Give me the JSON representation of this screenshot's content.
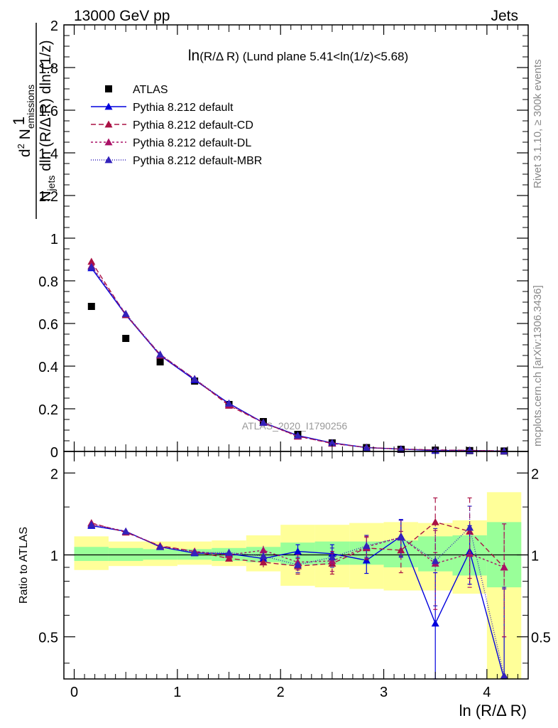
{
  "header": {
    "left": "13000 GeV pp",
    "right": "Jets"
  },
  "side_labels": {
    "rivet": "Rivet 3.1.10, ≥ 300k events",
    "mcplots": "mcplots.cern.ch [arXiv:1306.3436]"
  },
  "watermark": "ATLAS_2020_I1790256",
  "chart_data": [
    {
      "type": "scatter",
      "panel": "main",
      "title": "ln(R/Δ R) (Lund plane 5.41<ln(1/z)<5.68)",
      "title_parts": {
        "main": "ln",
        "paren": "(R/Δ R)",
        "rest": " (Lund plane 5.41<ln(1/z)<5.68)"
      },
      "ylabel_parts": {
        "one": "1",
        "den_N": "N",
        "den_jets": "jets",
        "den_rest": " dln (R/Δ R) dln (1/z)",
        "num_d": "d",
        "num_sup": "2",
        "num_N": " N",
        "num_sub": "emissions"
      },
      "xlim": [
        -0.1,
        4.4
      ],
      "ylim": [
        0,
        2
      ],
      "yticks": [
        0,
        0.2,
        0.4,
        0.6,
        0.8,
        1,
        1.2,
        1.4,
        1.6,
        1.8,
        2
      ],
      "ytick_labels": [
        "0",
        "0.2",
        "0.4",
        "0.6",
        "0.8",
        "1",
        "1.2",
        "1.4",
        "1.6",
        "1.8",
        "2"
      ],
      "x": [
        0.167,
        0.5,
        0.833,
        1.167,
        1.5,
        1.833,
        2.167,
        2.5,
        2.833,
        3.167,
        3.5,
        3.833,
        4.167
      ],
      "series": [
        {
          "name": "ATLAS",
          "color": "#000000",
          "marker": "square",
          "values": [
            0.68,
            0.53,
            0.42,
            0.33,
            0.22,
            0.14,
            0.08,
            0.04,
            0.018,
            0.01,
            0.006,
            0.004,
            0.002
          ]
        },
        {
          "name": "Pythia 8.212 default",
          "color": "#0000dd",
          "marker": "triangle",
          "dash": "",
          "values": [
            0.86,
            0.64,
            0.45,
            0.335,
            0.225,
            0.135,
            0.075,
            0.04,
            0.018,
            0.011,
            0.004,
            0.004,
            0.001
          ]
        },
        {
          "name": "Pythia 8.212 default-CD",
          "color": "#aa1144",
          "marker": "triangle",
          "dash": "7,4",
          "values": [
            0.89,
            0.64,
            0.455,
            0.34,
            0.215,
            0.135,
            0.072,
            0.037,
            0.019,
            0.011,
            0.007,
            0.005,
            0.002
          ]
        },
        {
          "name": "Pythia 8.212 default-DL",
          "color": "#aa1166",
          "marker": "triangle",
          "dash": "3,3",
          "values": [
            0.87,
            0.645,
            0.45,
            0.34,
            0.22,
            0.135,
            0.07,
            0.04,
            0.018,
            0.011,
            0.007,
            0.005,
            0.002
          ]
        },
        {
          "name": "Pythia 8.212 default-MBR",
          "color": "#3322bb",
          "marker": "triangle",
          "dash": "1,2",
          "values": [
            0.865,
            0.645,
            0.455,
            0.34,
            0.225,
            0.135,
            0.075,
            0.04,
            0.018,
            0.011,
            0.006,
            0.005,
            0.002
          ]
        }
      ],
      "legend_position": "top-left"
    },
    {
      "type": "scatter",
      "panel": "ratio",
      "ylabel": "Ratio to ATLAS",
      "xlabel": "ln (R/Δ R)",
      "xlim": [
        -0.1,
        4.4
      ],
      "ylim": [
        0.35,
        2.4
      ],
      "log_y": true,
      "yticks": [
        0.5,
        1,
        2
      ],
      "ytick_labels": [
        "0.5",
        "1",
        "2"
      ],
      "xticks": [
        0,
        1,
        2,
        3,
        4
      ],
      "xtick_labels": [
        "0",
        "1",
        "2",
        "3",
        "4"
      ],
      "reference": 1,
      "bands": {
        "edges": [
          0,
          0.333,
          0.667,
          1.0,
          1.333,
          1.667,
          2.0,
          2.333,
          2.667,
          3.0,
          3.333,
          3.667,
          4.0,
          4.333
        ],
        "stat": [
          [
            0.95,
            1.07
          ],
          [
            0.95,
            1.06
          ],
          [
            0.96,
            1.05
          ],
          [
            0.96,
            1.05
          ],
          [
            0.95,
            1.06
          ],
          [
            0.94,
            1.07
          ],
          [
            0.92,
            1.11
          ],
          [
            0.92,
            1.12
          ],
          [
            0.92,
            1.12
          ],
          [
            0.9,
            1.13
          ],
          [
            0.87,
            1.17
          ],
          [
            0.84,
            1.18
          ],
          [
            0.76,
            1.32
          ]
        ],
        "total": [
          [
            0.88,
            1.17
          ],
          [
            0.91,
            1.12
          ],
          [
            0.91,
            1.12
          ],
          [
            0.92,
            1.12
          ],
          [
            0.91,
            1.13
          ],
          [
            0.87,
            1.18
          ],
          [
            0.77,
            1.29
          ],
          [
            0.76,
            1.29
          ],
          [
            0.75,
            1.31
          ],
          [
            0.74,
            1.32
          ],
          [
            0.74,
            1.31
          ],
          [
            0.72,
            1.34
          ],
          [
            0.34,
            1.7
          ]
        ]
      },
      "series": [
        {
          "name": "Pythia 8.212 default",
          "color": "#0000dd",
          "dash": "",
          "values": [
            1.28,
            1.22,
            1.07,
            1.015,
            1.01,
            0.97,
            1.03,
            1.01,
            0.955,
            1.17,
            0.56,
            1.03,
            0.35
          ],
          "err": [
            0.01,
            0.01,
            0.01,
            0.02,
            0.03,
            0.04,
            0.06,
            0.08,
            0.1,
            0.18,
            0.3,
            0.25,
            0.4
          ]
        },
        {
          "name": "Pythia 8.212 default-CD",
          "color": "#aa1144",
          "dash": "7,4",
          "values": [
            1.31,
            1.21,
            1.08,
            1.03,
            0.97,
            0.94,
            0.91,
            0.93,
            1.06,
            1.04,
            1.32,
            1.22,
            0.9
          ],
          "err": [
            0.01,
            0.01,
            0.01,
            0.02,
            0.03,
            0.04,
            0.06,
            0.08,
            0.1,
            0.18,
            0.3,
            0.4,
            0.4
          ]
        },
        {
          "name": "Pythia 8.212 default-DL",
          "color": "#aa1166",
          "dash": "3,3",
          "values": [
            1.3,
            1.22,
            1.075,
            1.03,
            1.0,
            1.04,
            0.94,
            0.95,
            1.07,
            1.16,
            0.93,
            1.01,
            0.9
          ],
          "err": [
            0.01,
            0.01,
            0.01,
            0.02,
            0.03,
            0.04,
            0.06,
            0.08,
            0.1,
            0.18,
            0.3,
            0.25,
            0.4
          ]
        },
        {
          "name": "Pythia 8.212 default-MBR",
          "color": "#3322bb",
          "dash": "1,2",
          "values": [
            1.29,
            1.22,
            1.07,
            1.02,
            1.02,
            0.99,
            0.92,
            0.98,
            1.08,
            1.16,
            0.95,
            1.26,
            0.36
          ],
          "err": [
            0.01,
            0.01,
            0.01,
            0.02,
            0.03,
            0.04,
            0.06,
            0.08,
            0.1,
            0.18,
            0.3,
            0.25,
            0.4
          ]
        }
      ]
    }
  ]
}
